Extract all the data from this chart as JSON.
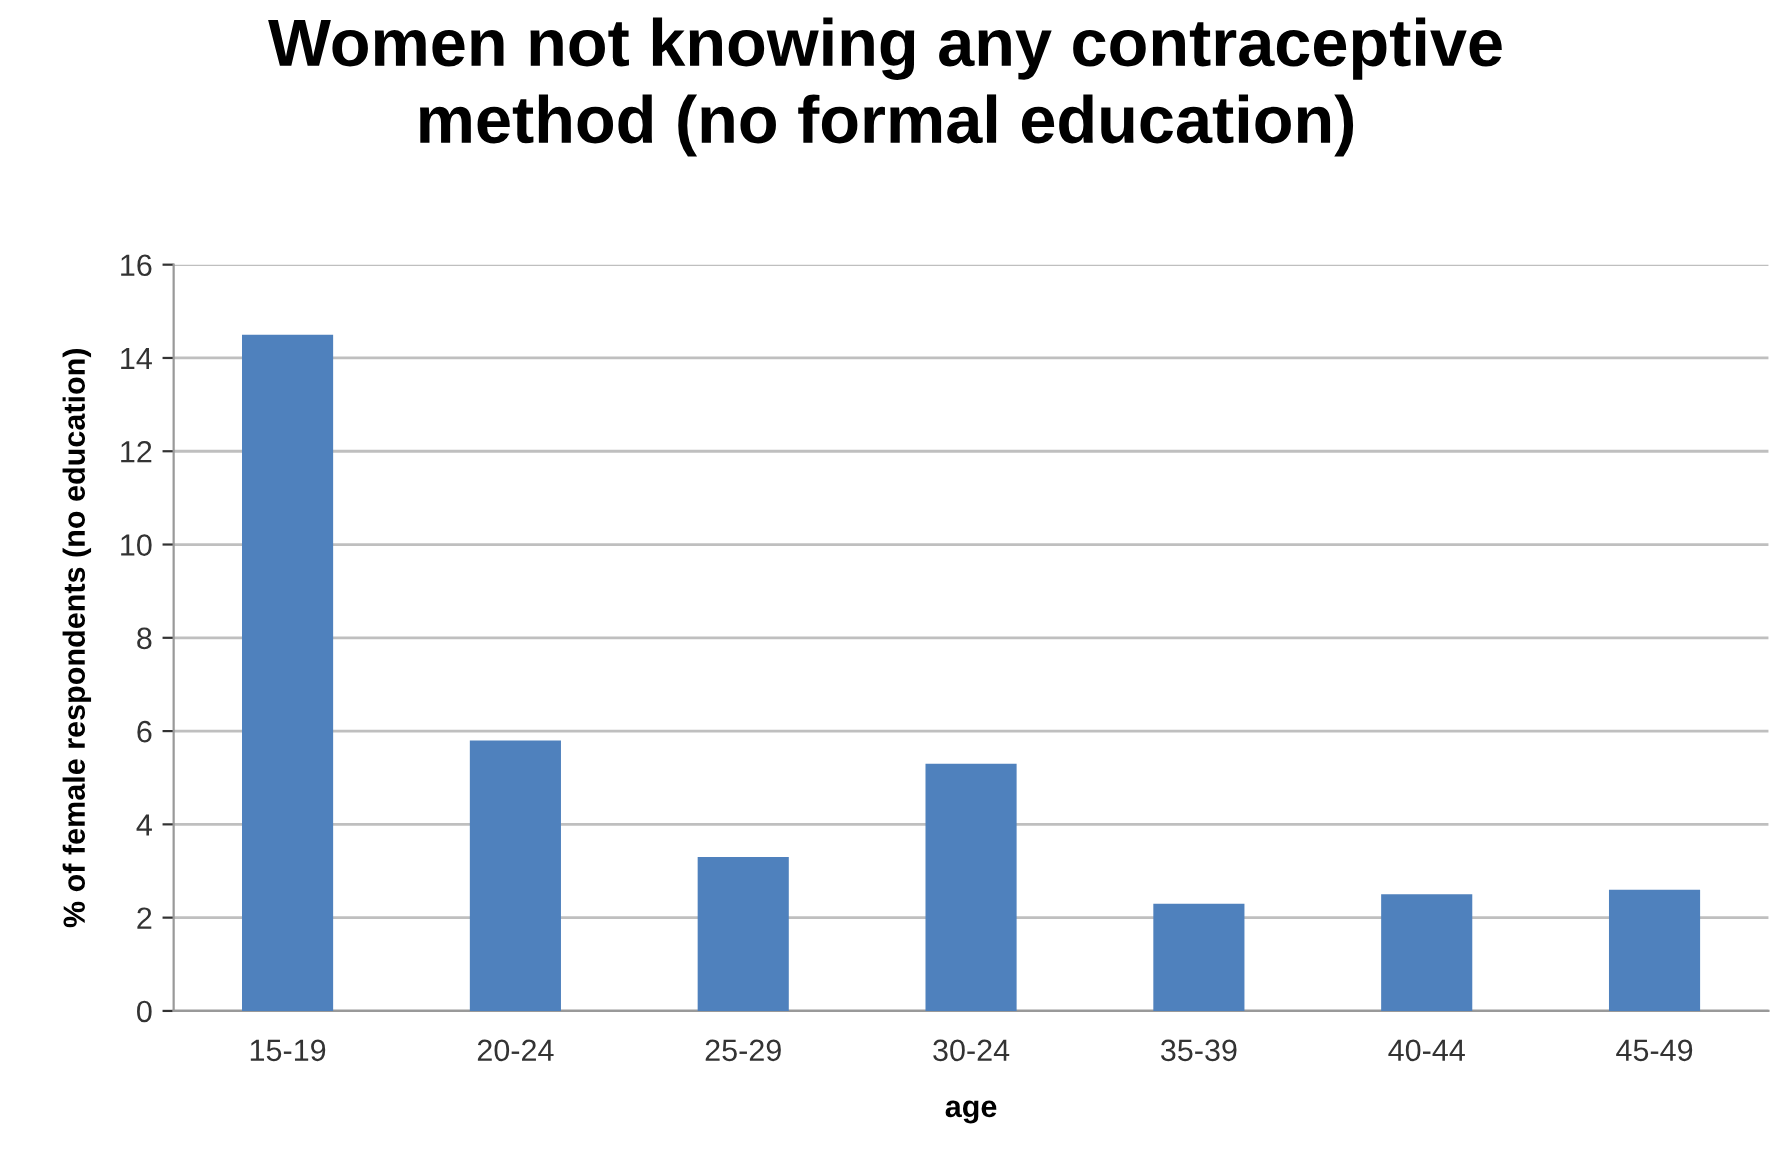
{
  "chart_data": {
    "type": "bar",
    "title": "Women not knowing any contraceptive\nmethod (no formal education)",
    "xlabel": "age",
    "ylabel": "% of female respondents (no education)",
    "categories": [
      "15-19",
      "20-24",
      "25-29",
      "30-24",
      "35-39",
      "40-44",
      "45-49"
    ],
    "values": [
      14.5,
      5.8,
      3.3,
      5.3,
      2.3,
      2.5,
      2.6
    ],
    "color": "#4f81bd",
    "ylim": [
      0,
      16
    ],
    "yticks": [
      0,
      2,
      4,
      6,
      8,
      10,
      12,
      14,
      16
    ],
    "grid": "y"
  }
}
